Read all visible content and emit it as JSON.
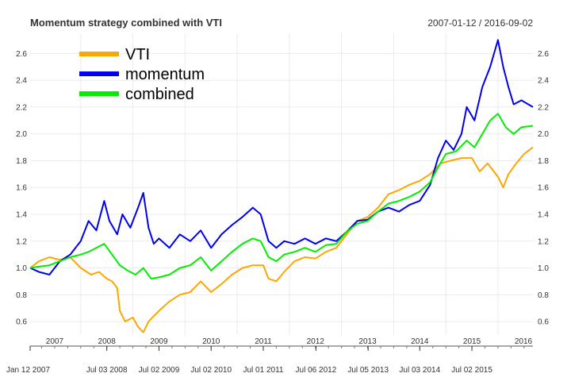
{
  "chart_data": {
    "type": "line",
    "title": "Momentum strategy combined with VTI",
    "date_range": "2007-01-12 / 2016-09-02",
    "ylim": [
      0.5,
      2.75
    ],
    "y_ticks": [
      "0.6",
      "0.8",
      "1.0",
      "1.2",
      "1.4",
      "1.6",
      "1.8",
      "2.0",
      "2.2",
      "2.4",
      "2.6"
    ],
    "x_start": 2007.03,
    "x_end": 2016.67,
    "year_labels": [
      "2007",
      "2008",
      "2009",
      "2010",
      "2011",
      "2012",
      "2013",
      "2014",
      "2015",
      "2016"
    ],
    "date_labels": [
      {
        "label": "Jan 12 2007",
        "t": 2007.03
      },
      {
        "label": "Jul 03 2008",
        "t": 2008.5
      },
      {
        "label": "Jul 02 2009",
        "t": 2009.5
      },
      {
        "label": "Jul 02 2010",
        "t": 2010.5
      },
      {
        "label": "Jul 01 2011",
        "t": 2011.5
      },
      {
        "label": "Jul 06 2012",
        "t": 2012.51
      },
      {
        "label": "Jul 05 2013",
        "t": 2013.51
      },
      {
        "label": "Jul 03 2014",
        "t": 2014.5
      },
      {
        "label": "Jul 02 2015",
        "t": 2015.5
      }
    ],
    "legend": [
      "VTI",
      "momentum",
      "combined"
    ],
    "series": [
      {
        "name": "VTI",
        "color": "#FFA500",
        "points": [
          [
            2007.03,
            1.0
          ],
          [
            2007.2,
            1.05
          ],
          [
            2007.4,
            1.08
          ],
          [
            2007.6,
            1.06
          ],
          [
            2007.8,
            1.08
          ],
          [
            2008.0,
            1.0
          ],
          [
            2008.2,
            0.95
          ],
          [
            2008.35,
            0.97
          ],
          [
            2008.5,
            0.92
          ],
          [
            2008.6,
            0.9
          ],
          [
            2008.7,
            0.85
          ],
          [
            2008.75,
            0.68
          ],
          [
            2008.85,
            0.6
          ],
          [
            2009.0,
            0.63
          ],
          [
            2009.1,
            0.56
          ],
          [
            2009.2,
            0.52
          ],
          [
            2009.3,
            0.6
          ],
          [
            2009.5,
            0.68
          ],
          [
            2009.7,
            0.75
          ],
          [
            2009.9,
            0.8
          ],
          [
            2010.1,
            0.82
          ],
          [
            2010.3,
            0.9
          ],
          [
            2010.5,
            0.82
          ],
          [
            2010.7,
            0.88
          ],
          [
            2010.9,
            0.95
          ],
          [
            2011.1,
            1.0
          ],
          [
            2011.3,
            1.02
          ],
          [
            2011.5,
            1.02
          ],
          [
            2011.6,
            0.92
          ],
          [
            2011.75,
            0.9
          ],
          [
            2011.9,
            0.97
          ],
          [
            2012.1,
            1.05
          ],
          [
            2012.3,
            1.08
          ],
          [
            2012.5,
            1.07
          ],
          [
            2012.7,
            1.12
          ],
          [
            2012.9,
            1.15
          ],
          [
            2013.1,
            1.25
          ],
          [
            2013.3,
            1.35
          ],
          [
            2013.5,
            1.38
          ],
          [
            2013.7,
            1.45
          ],
          [
            2013.9,
            1.55
          ],
          [
            2014.1,
            1.58
          ],
          [
            2014.3,
            1.62
          ],
          [
            2014.5,
            1.65
          ],
          [
            2014.7,
            1.7
          ],
          [
            2014.9,
            1.78
          ],
          [
            2015.1,
            1.8
          ],
          [
            2015.3,
            1.82
          ],
          [
            2015.5,
            1.82
          ],
          [
            2015.65,
            1.72
          ],
          [
            2015.8,
            1.78
          ],
          [
            2016.0,
            1.68
          ],
          [
            2016.1,
            1.6
          ],
          [
            2016.2,
            1.7
          ],
          [
            2016.35,
            1.78
          ],
          [
            2016.5,
            1.85
          ],
          [
            2016.67,
            1.9
          ]
        ]
      },
      {
        "name": "momentum",
        "color": "#0000EE",
        "points": [
          [
            2007.03,
            1.0
          ],
          [
            2007.2,
            0.97
          ],
          [
            2007.4,
            0.95
          ],
          [
            2007.6,
            1.05
          ],
          [
            2007.8,
            1.1
          ],
          [
            2008.0,
            1.2
          ],
          [
            2008.15,
            1.35
          ],
          [
            2008.3,
            1.28
          ],
          [
            2008.45,
            1.5
          ],
          [
            2008.55,
            1.35
          ],
          [
            2008.7,
            1.25
          ],
          [
            2008.8,
            1.4
          ],
          [
            2008.95,
            1.3
          ],
          [
            2009.1,
            1.45
          ],
          [
            2009.2,
            1.56
          ],
          [
            2009.3,
            1.3
          ],
          [
            2009.4,
            1.18
          ],
          [
            2009.5,
            1.22
          ],
          [
            2009.7,
            1.15
          ],
          [
            2009.9,
            1.25
          ],
          [
            2010.1,
            1.2
          ],
          [
            2010.3,
            1.28
          ],
          [
            2010.5,
            1.15
          ],
          [
            2010.7,
            1.25
          ],
          [
            2010.9,
            1.32
          ],
          [
            2011.1,
            1.38
          ],
          [
            2011.3,
            1.45
          ],
          [
            2011.45,
            1.4
          ],
          [
            2011.6,
            1.2
          ],
          [
            2011.75,
            1.15
          ],
          [
            2011.9,
            1.2
          ],
          [
            2012.1,
            1.18
          ],
          [
            2012.3,
            1.22
          ],
          [
            2012.5,
            1.18
          ],
          [
            2012.7,
            1.22
          ],
          [
            2012.9,
            1.2
          ],
          [
            2013.1,
            1.27
          ],
          [
            2013.3,
            1.35
          ],
          [
            2013.5,
            1.36
          ],
          [
            2013.7,
            1.42
          ],
          [
            2013.9,
            1.45
          ],
          [
            2014.1,
            1.42
          ],
          [
            2014.3,
            1.47
          ],
          [
            2014.5,
            1.5
          ],
          [
            2014.7,
            1.62
          ],
          [
            2014.85,
            1.82
          ],
          [
            2015.0,
            1.95
          ],
          [
            2015.15,
            1.88
          ],
          [
            2015.3,
            2.0
          ],
          [
            2015.4,
            2.2
          ],
          [
            2015.55,
            2.1
          ],
          [
            2015.7,
            2.35
          ],
          [
            2015.85,
            2.5
          ],
          [
            2016.0,
            2.7
          ],
          [
            2016.1,
            2.5
          ],
          [
            2016.2,
            2.35
          ],
          [
            2016.3,
            2.22
          ],
          [
            2016.45,
            2.25
          ],
          [
            2016.67,
            2.2
          ]
        ]
      },
      {
        "name": "combined",
        "color": "#00EE00",
        "points": [
          [
            2007.03,
            1.0
          ],
          [
            2007.2,
            1.01
          ],
          [
            2007.4,
            1.02
          ],
          [
            2007.6,
            1.05
          ],
          [
            2007.8,
            1.08
          ],
          [
            2008.0,
            1.1
          ],
          [
            2008.15,
            1.12
          ],
          [
            2008.3,
            1.15
          ],
          [
            2008.45,
            1.18
          ],
          [
            2008.6,
            1.1
          ],
          [
            2008.75,
            1.02
          ],
          [
            2008.9,
            0.98
          ],
          [
            2009.05,
            0.95
          ],
          [
            2009.2,
            1.0
          ],
          [
            2009.35,
            0.92
          ],
          [
            2009.5,
            0.93
          ],
          [
            2009.7,
            0.95
          ],
          [
            2009.9,
            1.0
          ],
          [
            2010.1,
            1.02
          ],
          [
            2010.3,
            1.08
          ],
          [
            2010.5,
            0.98
          ],
          [
            2010.7,
            1.05
          ],
          [
            2010.9,
            1.12
          ],
          [
            2011.1,
            1.18
          ],
          [
            2011.3,
            1.22
          ],
          [
            2011.45,
            1.2
          ],
          [
            2011.6,
            1.08
          ],
          [
            2011.75,
            1.05
          ],
          [
            2011.9,
            1.1
          ],
          [
            2012.1,
            1.12
          ],
          [
            2012.3,
            1.15
          ],
          [
            2012.5,
            1.12
          ],
          [
            2012.7,
            1.17
          ],
          [
            2012.9,
            1.18
          ],
          [
            2013.1,
            1.27
          ],
          [
            2013.3,
            1.33
          ],
          [
            2013.5,
            1.35
          ],
          [
            2013.7,
            1.42
          ],
          [
            2013.9,
            1.48
          ],
          [
            2014.1,
            1.5
          ],
          [
            2014.3,
            1.53
          ],
          [
            2014.5,
            1.57
          ],
          [
            2014.7,
            1.64
          ],
          [
            2014.85,
            1.75
          ],
          [
            2015.0,
            1.85
          ],
          [
            2015.2,
            1.87
          ],
          [
            2015.4,
            1.95
          ],
          [
            2015.55,
            1.9
          ],
          [
            2015.7,
            2.0
          ],
          [
            2015.85,
            2.1
          ],
          [
            2016.0,
            2.15
          ],
          [
            2016.15,
            2.05
          ],
          [
            2016.3,
            2.0
          ],
          [
            2016.45,
            2.05
          ],
          [
            2016.67,
            2.06
          ]
        ]
      }
    ]
  }
}
